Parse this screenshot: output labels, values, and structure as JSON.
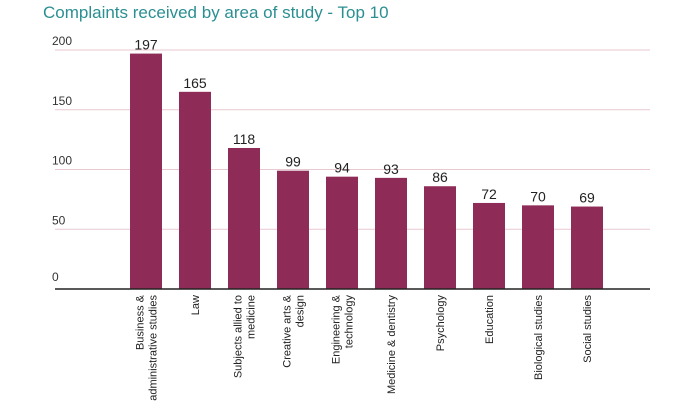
{
  "chart_data": {
    "type": "bar",
    "title": "Complaints received by area of study - Top 10",
    "xlabel": "",
    "ylabel": "",
    "ylim": [
      0,
      200
    ],
    "yticks": [
      0,
      50,
      100,
      150,
      200
    ],
    "grid": true,
    "categories": [
      [
        "Business &",
        "administrative studies"
      ],
      [
        "Law"
      ],
      [
        "Subjects allied to",
        "medicine"
      ],
      [
        "Creative arts &",
        "design"
      ],
      [
        "Engineering &",
        "technology"
      ],
      [
        "Medicine & dentistry"
      ],
      [
        "Psychology"
      ],
      [
        "Education"
      ],
      [
        "Biological studies"
      ],
      [
        "Social studies"
      ]
    ],
    "values": [
      197,
      165,
      118,
      99,
      94,
      93,
      86,
      72,
      70,
      69
    ],
    "colors": {
      "bar": "#8e2b57",
      "grid": "#e8c9d0",
      "axis": "#222222",
      "title": "#2b8f92"
    }
  }
}
